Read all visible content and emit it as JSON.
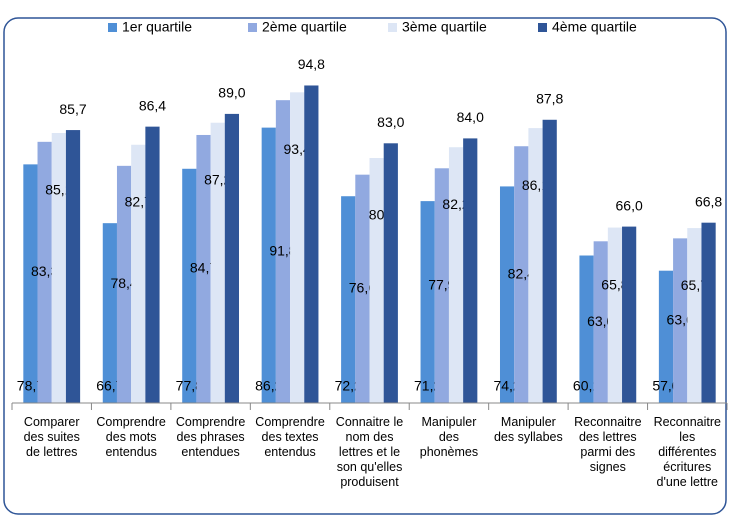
{
  "chart_data": {
    "type": "bar",
    "categories": [
      "Comparer\ndes suites\nde lettres",
      "Comprendre\ndes mots\nentendus",
      "Comprendre\ndes phrases\nentendues",
      "Comprendre\ndes textes\nentendus",
      "Connaitre le\nnom des\nlettres et le\nson qu'elles\nproduisent",
      "Manipuler\ndes\nphonèmes",
      "Manipuler\ndes syllabes",
      "Reconnaitre\ndes lettres\nparmi des\nsignes",
      "Reconnaitre\nles\ndifférentes\nécritures\nd'une lettre"
    ],
    "series": [
      {
        "name": "1er quartile",
        "color": "#4f8fd6",
        "values": [
          78.7,
          66.7,
          77.8,
          86.2,
          72.2,
          71.2,
          74.2,
          60.1,
          57.0
        ],
        "value_labels": [
          "78,7",
          "66,7",
          "77,8",
          "86,2",
          "72,2",
          "71,2",
          "74,2",
          "60,1",
          "57,0"
        ]
      },
      {
        "name": "2ème quartile",
        "color": "#91a9e0",
        "values": [
          83.3,
          78.4,
          84.7,
          91.8,
          76.6,
          77.9,
          82.4,
          63.0,
          63.6
        ],
        "value_labels": [
          "83,3",
          "78,4",
          "84,7",
          "91,8",
          "76,6",
          "77,9",
          "82,4",
          "63,0",
          "63,6"
        ]
      },
      {
        "name": "3ème quartile",
        "color": "#dde6f5",
        "values": [
          85.1,
          82.7,
          87.2,
          93.4,
          80,
          82.2,
          86.1,
          65.8,
          65.7
        ],
        "value_labels": [
          "85,1",
          "82,7",
          "87,2",
          "93,4",
          "80",
          "82,2",
          "86,1",
          "65,8",
          "65,7"
        ]
      },
      {
        "name": "4ème quartile",
        "color": "#2f5597",
        "values": [
          85.7,
          86.4,
          89.0,
          94.8,
          83.0,
          84.0,
          87.8,
          66.0,
          66.8
        ],
        "value_labels": [
          "85,7",
          "86,4",
          "89,0",
          "94,8",
          "83,0",
          "84,0",
          "87,8",
          "66,0",
          "66,8"
        ]
      }
    ],
    "ylim": [
      30,
      100
    ],
    "legend": "top"
  }
}
